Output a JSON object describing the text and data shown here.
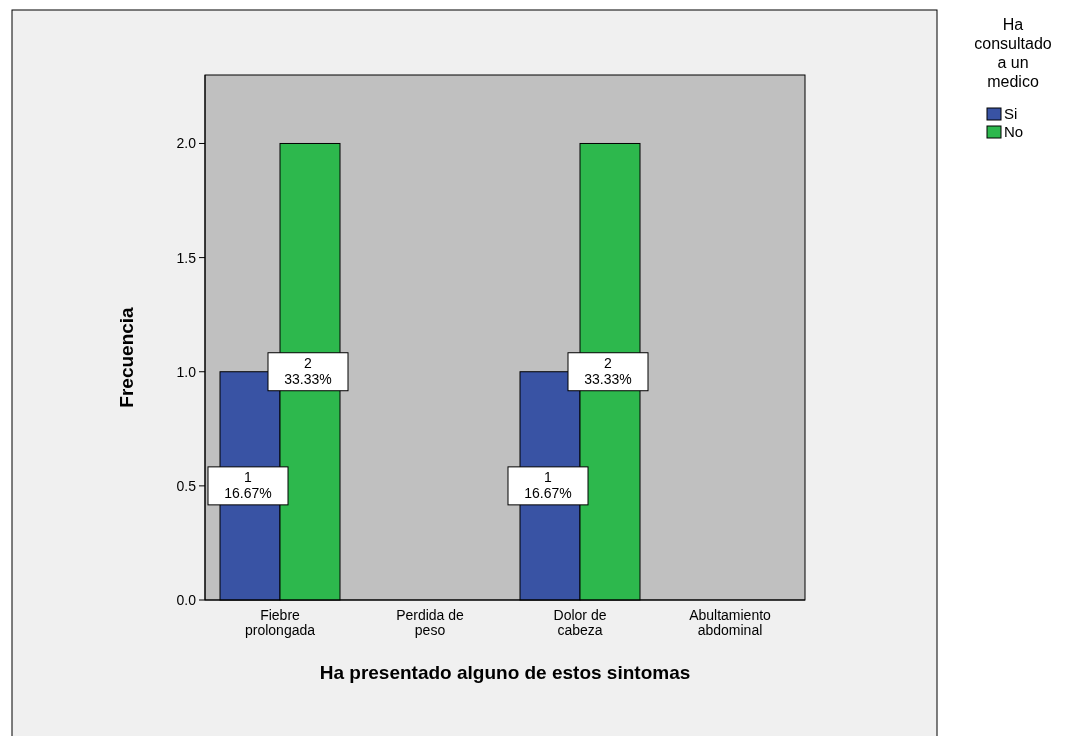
{
  "chart_data": {
    "type": "bar",
    "xlabel": "Ha presentado alguno de estos sintomas",
    "ylabel": "Frecuencia",
    "legend_title": "Ha consultado a un medico",
    "categories": [
      "Fiebre prolongada",
      "Perdida de peso",
      "Dolor de cabeza",
      "Abultamiento abdominal"
    ],
    "series": [
      {
        "name": "Si",
        "color": "#3953a4",
        "values": [
          1,
          null,
          1,
          null
        ],
        "value_labels": [
          "1\n16.67%",
          null,
          "1\n16.67%",
          null
        ]
      },
      {
        "name": "No",
        "color": "#2db84d",
        "values": [
          2,
          null,
          2,
          null
        ],
        "value_labels": [
          "2\n33.33%",
          null,
          "2\n33.33%",
          null
        ]
      }
    ],
    "ylim": [
      0,
      2.3
    ],
    "yticks": [
      {
        "value": 0,
        "label": "0.0"
      },
      {
        "value": 0.5,
        "label": "0.5"
      },
      {
        "value": 1,
        "label": "1.0"
      },
      {
        "value": 1.5,
        "label": "1.5"
      },
      {
        "value": 2,
        "label": "2.0"
      }
    ],
    "legend": "top right",
    "grid": false
  }
}
